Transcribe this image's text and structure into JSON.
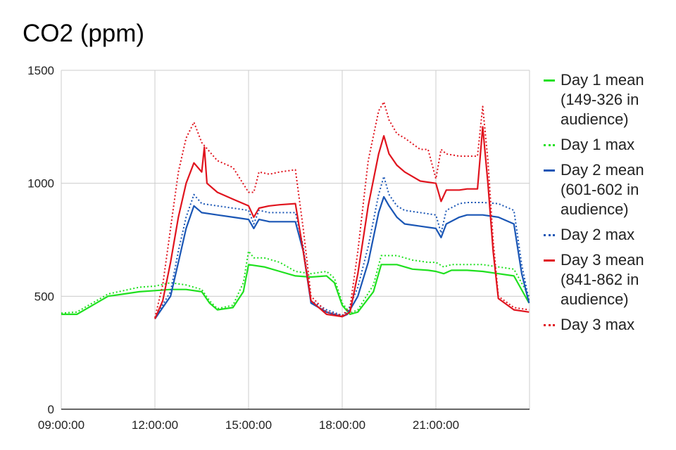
{
  "chart_data": {
    "type": "line",
    "title": "CO2 (ppm)",
    "xlabel": "",
    "ylabel": "",
    "ylim": [
      0,
      1500
    ],
    "xlim": [
      "09:00:00",
      "24:00:00"
    ],
    "xticks": [
      "09:00:00",
      "12:00:00",
      "15:00:00",
      "18:00:00",
      "21:00:00"
    ],
    "yticks": [
      0,
      500,
      1000,
      1500
    ],
    "grid": true,
    "legend_position": "right",
    "series": [
      {
        "name": "Day 1 mean (149-326 in audience)",
        "color": "#1fe01f",
        "style": "solid",
        "points": [
          [
            "09:00",
            420
          ],
          [
            "09:30",
            420
          ],
          [
            "10:00",
            460
          ],
          [
            "10:30",
            500
          ],
          [
            "11:00",
            510
          ],
          [
            "11:30",
            520
          ],
          [
            "12:00",
            525
          ],
          [
            "12:30",
            530
          ],
          [
            "13:00",
            530
          ],
          [
            "13:30",
            520
          ],
          [
            "13:45",
            470
          ],
          [
            "14:00",
            440
          ],
          [
            "14:30",
            450
          ],
          [
            "14:50",
            520
          ],
          [
            "15:00",
            640
          ],
          [
            "15:30",
            630
          ],
          [
            "16:00",
            610
          ],
          [
            "16:30",
            590
          ],
          [
            "17:00",
            585
          ],
          [
            "17:30",
            590
          ],
          [
            "17:45",
            560
          ],
          [
            "18:00",
            460
          ],
          [
            "18:15",
            420
          ],
          [
            "18:30",
            430
          ],
          [
            "19:00",
            520
          ],
          [
            "19:15",
            640
          ],
          [
            "19:45",
            640
          ],
          [
            "20:15",
            620
          ],
          [
            "20:45",
            615
          ],
          [
            "21:00",
            610
          ],
          [
            "21:15",
            600
          ],
          [
            "21:30",
            615
          ],
          [
            "22:00",
            615
          ],
          [
            "22:30",
            610
          ],
          [
            "23:00",
            600
          ],
          [
            "23:30",
            590
          ],
          [
            "23:59",
            470
          ]
        ]
      },
      {
        "name": "Day 1 max",
        "color": "#1fe01f",
        "style": "dotted",
        "points": [
          [
            "09:00",
            425
          ],
          [
            "09:30",
            430
          ],
          [
            "10:00",
            470
          ],
          [
            "10:30",
            510
          ],
          [
            "11:00",
            525
          ],
          [
            "11:30",
            540
          ],
          [
            "12:00",
            545
          ],
          [
            "12:30",
            560
          ],
          [
            "13:00",
            550
          ],
          [
            "13:30",
            530
          ],
          [
            "13:45",
            480
          ],
          [
            "14:00",
            445
          ],
          [
            "14:30",
            460
          ],
          [
            "14:50",
            560
          ],
          [
            "15:00",
            700
          ],
          [
            "15:10",
            670
          ],
          [
            "15:30",
            670
          ],
          [
            "16:00",
            650
          ],
          [
            "16:30",
            610
          ],
          [
            "17:00",
            600
          ],
          [
            "17:30",
            610
          ],
          [
            "17:45",
            580
          ],
          [
            "18:00",
            470
          ],
          [
            "18:15",
            425
          ],
          [
            "18:30",
            440
          ],
          [
            "19:00",
            550
          ],
          [
            "19:15",
            680
          ],
          [
            "19:45",
            680
          ],
          [
            "20:15",
            660
          ],
          [
            "20:45",
            650
          ],
          [
            "21:00",
            650
          ],
          [
            "21:15",
            630
          ],
          [
            "21:30",
            640
          ],
          [
            "22:00",
            640
          ],
          [
            "22:30",
            640
          ],
          [
            "23:00",
            630
          ],
          [
            "23:30",
            620
          ],
          [
            "23:59",
            500
          ]
        ]
      },
      {
        "name": "Day 2 mean (601-602 in audience)",
        "color": "#1a56b5",
        "style": "solid",
        "points": [
          [
            "12:00",
            400
          ],
          [
            "12:30",
            500
          ],
          [
            "12:45",
            650
          ],
          [
            "13:00",
            800
          ],
          [
            "13:15",
            900
          ],
          [
            "13:30",
            870
          ],
          [
            "14:00",
            860
          ],
          [
            "14:30",
            850
          ],
          [
            "15:00",
            840
          ],
          [
            "15:10",
            800
          ],
          [
            "15:20",
            840
          ],
          [
            "15:40",
            830
          ],
          [
            "16:00",
            830
          ],
          [
            "16:30",
            830
          ],
          [
            "16:45",
            700
          ],
          [
            "17:00",
            470
          ],
          [
            "17:30",
            430
          ],
          [
            "18:00",
            410
          ],
          [
            "18:10",
            420
          ],
          [
            "18:30",
            500
          ],
          [
            "18:50",
            650
          ],
          [
            "19:10",
            870
          ],
          [
            "19:20",
            940
          ],
          [
            "19:30",
            900
          ],
          [
            "19:45",
            850
          ],
          [
            "20:00",
            820
          ],
          [
            "20:30",
            810
          ],
          [
            "21:00",
            800
          ],
          [
            "21:10",
            760
          ],
          [
            "21:20",
            820
          ],
          [
            "21:45",
            850
          ],
          [
            "22:00",
            860
          ],
          [
            "22:30",
            860
          ],
          [
            "23:00",
            850
          ],
          [
            "23:30",
            820
          ],
          [
            "23:45",
            600
          ],
          [
            "23:59",
            470
          ]
        ]
      },
      {
        "name": "Day 2 max",
        "color": "#1a56b5",
        "style": "dotted",
        "points": [
          [
            "12:00",
            405
          ],
          [
            "12:30",
            520
          ],
          [
            "12:45",
            700
          ],
          [
            "13:00",
            850
          ],
          [
            "13:15",
            950
          ],
          [
            "13:30",
            910
          ],
          [
            "14:00",
            900
          ],
          [
            "14:30",
            890
          ],
          [
            "15:00",
            880
          ],
          [
            "15:10",
            820
          ],
          [
            "15:20",
            880
          ],
          [
            "15:40",
            870
          ],
          [
            "16:00",
            870
          ],
          [
            "16:30",
            870
          ],
          [
            "16:45",
            720
          ],
          [
            "17:00",
            480
          ],
          [
            "17:30",
            440
          ],
          [
            "18:00",
            415
          ],
          [
            "18:10",
            430
          ],
          [
            "18:30",
            540
          ],
          [
            "18:50",
            720
          ],
          [
            "19:10",
            950
          ],
          [
            "19:20",
            1030
          ],
          [
            "19:30",
            950
          ],
          [
            "19:45",
            900
          ],
          [
            "20:00",
            880
          ],
          [
            "20:30",
            870
          ],
          [
            "21:00",
            860
          ],
          [
            "21:10",
            780
          ],
          [
            "21:20",
            880
          ],
          [
            "21:45",
            910
          ],
          [
            "22:00",
            915
          ],
          [
            "22:30",
            915
          ],
          [
            "23:00",
            910
          ],
          [
            "23:30",
            880
          ],
          [
            "23:45",
            640
          ],
          [
            "23:59",
            480
          ]
        ]
      },
      {
        "name": "Day 3 mean (841-862 in audience)",
        "color": "#e0141e",
        "style": "solid",
        "points": [
          [
            "12:00",
            400
          ],
          [
            "12:15",
            480
          ],
          [
            "12:30",
            650
          ],
          [
            "12:45",
            850
          ],
          [
            "13:00",
            1000
          ],
          [
            "13:15",
            1090
          ],
          [
            "13:30",
            1050
          ],
          [
            "13:35",
            1160
          ],
          [
            "13:40",
            1000
          ],
          [
            "14:00",
            960
          ],
          [
            "14:30",
            930
          ],
          [
            "15:00",
            900
          ],
          [
            "15:10",
            850
          ],
          [
            "15:20",
            890
          ],
          [
            "15:40",
            900
          ],
          [
            "16:00",
            905
          ],
          [
            "16:30",
            910
          ],
          [
            "16:45",
            700
          ],
          [
            "17:00",
            480
          ],
          [
            "17:30",
            420
          ],
          [
            "18:00",
            410
          ],
          [
            "18:15",
            430
          ],
          [
            "18:30",
            600
          ],
          [
            "18:50",
            900
          ],
          [
            "19:10",
            1130
          ],
          [
            "19:20",
            1210
          ],
          [
            "19:30",
            1130
          ],
          [
            "19:45",
            1080
          ],
          [
            "20:00",
            1050
          ],
          [
            "20:30",
            1010
          ],
          [
            "21:00",
            1000
          ],
          [
            "21:10",
            920
          ],
          [
            "21:20",
            970
          ],
          [
            "21:45",
            970
          ],
          [
            "22:00",
            975
          ],
          [
            "22:20",
            975
          ],
          [
            "22:30",
            1250
          ],
          [
            "22:40",
            1000
          ],
          [
            "22:50",
            700
          ],
          [
            "23:00",
            490
          ],
          [
            "23:30",
            440
          ],
          [
            "23:59",
            430
          ]
        ]
      },
      {
        "name": "Day 3 max",
        "color": "#e0141e",
        "style": "dotted",
        "points": [
          [
            "12:00",
            405
          ],
          [
            "12:15",
            550
          ],
          [
            "12:30",
            800
          ],
          [
            "12:45",
            1050
          ],
          [
            "13:00",
            1200
          ],
          [
            "13:15",
            1270
          ],
          [
            "13:30",
            1180
          ],
          [
            "14:00",
            1100
          ],
          [
            "14:30",
            1070
          ],
          [
            "15:00",
            960
          ],
          [
            "15:10",
            960
          ],
          [
            "15:20",
            1050
          ],
          [
            "15:40",
            1040
          ],
          [
            "16:00",
            1050
          ],
          [
            "16:30",
            1060
          ],
          [
            "16:45",
            800
          ],
          [
            "17:00",
            500
          ],
          [
            "17:30",
            430
          ],
          [
            "18:00",
            415
          ],
          [
            "18:15",
            450
          ],
          [
            "18:30",
            700
          ],
          [
            "18:50",
            1100
          ],
          [
            "19:10",
            1320
          ],
          [
            "19:20",
            1360
          ],
          [
            "19:30",
            1280
          ],
          [
            "19:45",
            1220
          ],
          [
            "20:00",
            1200
          ],
          [
            "20:30",
            1150
          ],
          [
            "20:45",
            1150
          ],
          [
            "21:00",
            1020
          ],
          [
            "21:10",
            1150
          ],
          [
            "21:20",
            1130
          ],
          [
            "21:45",
            1120
          ],
          [
            "22:00",
            1120
          ],
          [
            "22:20",
            1120
          ],
          [
            "22:30",
            1340
          ],
          [
            "22:40",
            1100
          ],
          [
            "22:50",
            750
          ],
          [
            "23:00",
            500
          ],
          [
            "23:30",
            450
          ],
          [
            "23:59",
            440
          ]
        ]
      }
    ]
  }
}
